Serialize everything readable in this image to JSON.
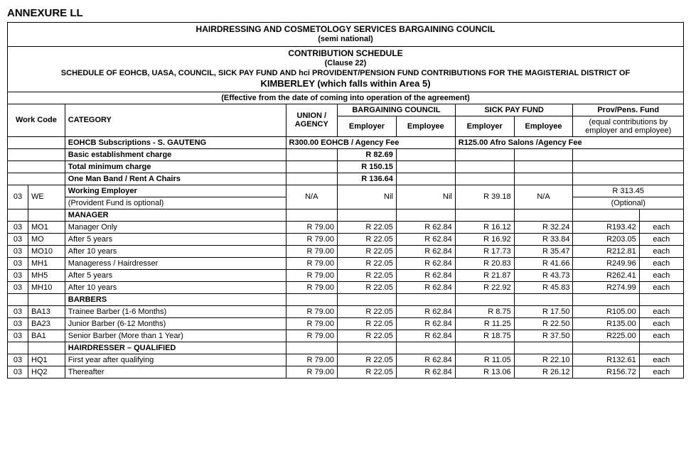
{
  "annexure_title": "ANNEXURE LL",
  "header": {
    "council_name": "HAIRDRESSING AND COSMETOLOGY SERVICES BARGAINING COUNCIL",
    "scope": "(semi national)",
    "schedule_title": "CONTRIBUTION SCHEDULE",
    "clause": "(Clause 22)",
    "schedule_desc": "SCHEDULE OF EOHCB, UASA, COUNCIL, SICK PAY FUND AND hci PROVIDENT/PENSION FUND CONTRIBUTIONS FOR THE MAGISTERIAL DISTRICT OF",
    "district_line": "KIMBERLEY (which falls within Area 5)",
    "effective": "(Effective from the date of coming into operation of the agreement)"
  },
  "columns": {
    "work_code": "Work Code",
    "category": "CATEGORY",
    "union": "UNION / AGENCY",
    "bargaining": "BARGAINING COUNCIL",
    "sickpay": "SICK PAY FUND",
    "provfund": "Prov/Pens. Fund",
    "employer": "Employer",
    "employee": "Employee",
    "prov_note": "(equal contributions by employer and employee)"
  },
  "subs_row": {
    "label": "EOHCB Subscriptions - S. GAUTENG",
    "fee1": "R300.00 EOHCB / Agency Fee",
    "fee2": "R125.00  Afro Salons /Agency Fee"
  },
  "charges": {
    "basic_label": "Basic establishment charge",
    "basic_val": "R 82.69",
    "totalmin_label": "Total minimum charge",
    "totalmin_val": "R 150.15",
    "oneman_label": "One Man Band / Rent A Chairs",
    "oneman_val": "R 136.64"
  },
  "we_row": {
    "zone": "03",
    "code": "WE",
    "label1": "Working Employer",
    "label2": "(Provident Fund is optional)",
    "union": "N/A",
    "bc_employer": "Nil",
    "bc_employee": "Nil",
    "sp_employer": "R 39.18",
    "sp_employee": "N/A",
    "prov_val": "R 313.45",
    "prov_note": "(Optional)"
  },
  "sections": {
    "manager": "MANAGER",
    "barbers": "BARBERS",
    "hairdresser": "HAIRDRESSER – QUALIFIED"
  },
  "each": "each",
  "rows": [
    {
      "z": "03",
      "c": "MO1",
      "cat": "Manager Only",
      "u": "R 79.00",
      "be": "R 22.05",
      "bee": "R 62.84",
      "se": "R 16.12",
      "see": "R 32.24",
      "p": "R193.42"
    },
    {
      "z": "03",
      "c": "MO",
      "cat": "After 5 years",
      "u": "R 79.00",
      "be": "R 22.05",
      "bee": "R 62.84",
      "se": "R 16.92",
      "see": "R 33.84",
      "p": "R203.05"
    },
    {
      "z": "03",
      "c": "MO10",
      "cat": "After 10 years",
      "u": "R 79.00",
      "be": "R 22.05",
      "bee": "R 62.84",
      "se": "R 17.73",
      "see": "R 35.47",
      "p": "R212.81"
    },
    {
      "z": "03",
      "c": "MH1",
      "cat": "Manageress / Hairdresser",
      "u": "R 79.00",
      "be": "R 22.05",
      "bee": "R 62.84",
      "se": "R 20.83",
      "see": "R 41.66",
      "p": "R249.96"
    },
    {
      "z": "03",
      "c": "MH5",
      "cat": "After 5 years",
      "u": "R 79.00",
      "be": "R 22.05",
      "bee": "R 62.84",
      "se": "R 21.87",
      "see": "R 43.73",
      "p": "R262.41"
    },
    {
      "z": "03",
      "c": "MH10",
      "cat": "After 10 years",
      "u": "R 79.00",
      "be": "R 22.05",
      "bee": "R 62.84",
      "se": "R 22.92",
      "see": "R 45.83",
      "p": "R274.99"
    },
    {
      "z": "03",
      "c": "BA13",
      "cat": "Trainee Barber (1-6 Months)",
      "u": "R 79.00",
      "be": "R 22.05",
      "bee": "R 62.84",
      "se": "R 8.75",
      "see": "R 17.50",
      "p": "R105.00"
    },
    {
      "z": "03",
      "c": "BA23",
      "cat": "Junior Barber (6-12 Months)",
      "u": "R 79.00",
      "be": "R 22.05",
      "bee": "R 62.84",
      "se": "R 11.25",
      "see": "R 22.50",
      "p": "R135.00"
    },
    {
      "z": "03",
      "c": "BA1",
      "cat": "Senior Barber (More than 1 Year)",
      "u": "R 79.00",
      "be": "R 22.05",
      "bee": "R 62.84",
      "se": "R 18.75",
      "see": "R 37.50",
      "p": "R225.00"
    },
    {
      "z": "03",
      "c": "HQ1",
      "cat": "First year after qualifying",
      "u": "R 79.00",
      "be": "R 22.05",
      "bee": "R 62.84",
      "se": "R 11.05",
      "see": "R 22.10",
      "p": "R132.61"
    },
    {
      "z": "03",
      "c": "HQ2",
      "cat": "Thereafter",
      "u": "R 79.00",
      "be": "R 22.05",
      "bee": "R 62.84",
      "se": "R 13.06",
      "see": "R 26.12",
      "p": "R156.72"
    }
  ]
}
